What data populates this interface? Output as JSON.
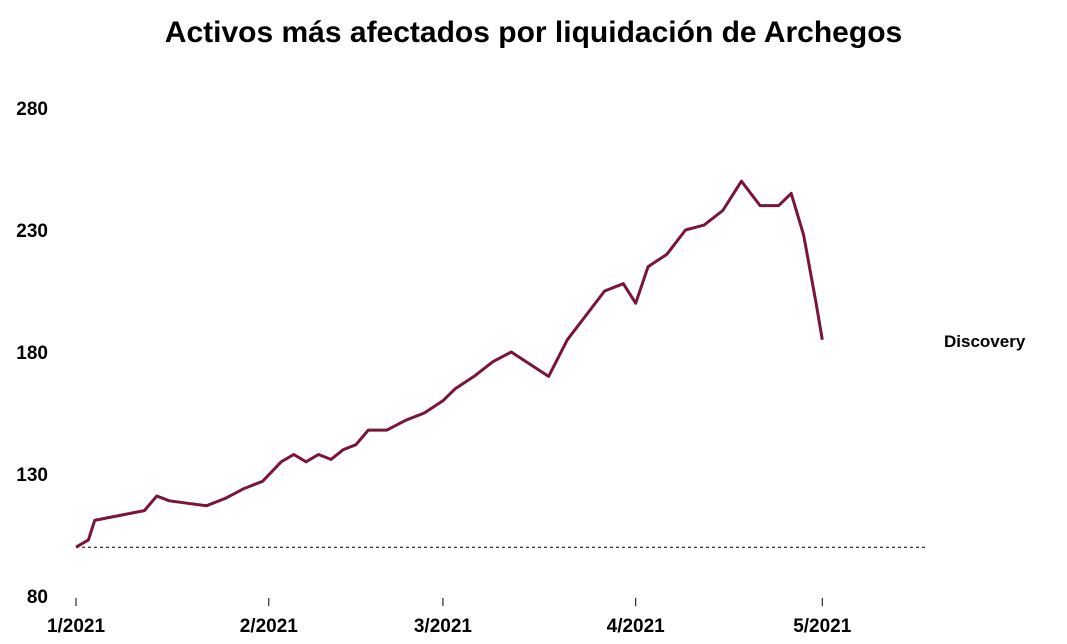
{
  "chart_data": {
    "type": "line",
    "title": "Activos más afectados por liquidación de Archegos",
    "xlabel": "",
    "ylabel": "",
    "ylim": [
      80,
      285
    ],
    "yticks": [
      80,
      130,
      180,
      230,
      280
    ],
    "xlim": [
      "2021-01-01",
      "2021-05-18"
    ],
    "xticks": [
      {
        "date": "2021-01-01",
        "label": "1/2021"
      },
      {
        "date": "2021-02-01",
        "label": "2/2021"
      },
      {
        "date": "2021-03-01",
        "label": "3/2021"
      },
      {
        "date": "2021-04-01",
        "label": "4/2021"
      },
      {
        "date": "2021-05-01",
        "label": "5/2021"
      }
    ],
    "reference_line": {
      "y": 100,
      "style": "dashed"
    },
    "grid": false,
    "legend": "labels at line ends (right)",
    "series": [
      {
        "name": "Discovery",
        "color": "#7a1535",
        "points": [
          [
            "2021-01-01",
            100
          ],
          [
            "2021-01-03",
            103
          ],
          [
            "2021-01-04",
            111
          ],
          [
            "2021-01-06",
            112
          ],
          [
            "2021-01-08",
            113
          ],
          [
            "2021-01-10",
            114
          ],
          [
            "2021-01-12",
            115
          ],
          [
            "2021-01-14",
            121
          ],
          [
            "2021-01-16",
            119
          ],
          [
            "2021-01-19",
            118
          ],
          [
            "2021-01-22",
            117
          ],
          [
            "2021-01-25",
            120
          ],
          [
            "2021-01-28",
            124
          ],
          [
            "2021-01-31",
            127
          ],
          [
            "2021-02-03",
            135
          ],
          [
            "2021-02-05",
            138
          ],
          [
            "2021-02-07",
            135
          ],
          [
            "2021-02-09",
            138
          ],
          [
            "2021-02-11",
            136
          ],
          [
            "2021-02-13",
            140
          ],
          [
            "2021-02-15",
            142
          ],
          [
            "2021-02-17",
            148
          ],
          [
            "2021-02-20",
            148
          ],
          [
            "2021-02-23",
            152
          ],
          [
            "2021-02-26",
            155
          ],
          [
            "2021-03-01",
            160
          ],
          [
            "2021-03-03",
            165
          ],
          [
            "2021-03-06",
            170
          ],
          [
            "2021-03-09",
            176
          ],
          [
            "2021-03-12",
            180
          ],
          [
            "2021-03-15",
            175
          ],
          [
            "2021-03-18",
            170
          ],
          [
            "2021-03-21",
            185
          ],
          [
            "2021-03-24",
            195
          ],
          [
            "2021-03-27",
            205
          ],
          [
            "2021-03-30",
            208
          ],
          [
            "2021-04-01",
            200
          ],
          [
            "2021-04-03",
            215
          ],
          [
            "2021-04-06",
            220
          ],
          [
            "2021-04-09",
            230
          ],
          [
            "2021-04-12",
            232
          ],
          [
            "2021-04-15",
            238
          ],
          [
            "2021-04-18",
            250
          ],
          [
            "2021-04-21",
            240
          ],
          [
            "2021-04-24",
            240
          ],
          [
            "2021-04-26",
            245
          ],
          [
            "2021-04-28",
            228
          ],
          [
            "2021-04-30",
            200
          ],
          [
            "2021-05-01",
            185
          ]
        ]
      }
    ]
  }
}
